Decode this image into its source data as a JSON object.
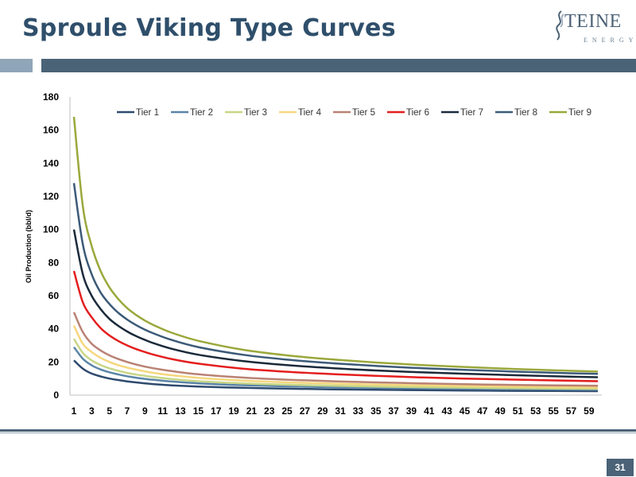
{
  "header": {
    "title": "Sproule Viking Type Curves",
    "logo_text": "TEINE",
    "logo_subtext": "ENERGY"
  },
  "footer": {
    "page_number": "31"
  },
  "colors": {
    "title": "#2f4f6b",
    "band_dark": "#4a6377",
    "band_light": "#8fa6b8"
  },
  "chart_data": {
    "type": "line",
    "title": "",
    "xlabel": "",
    "ylabel": "Oil Production (bbl/d)",
    "ylim": [
      0,
      180
    ],
    "yticks": [
      0,
      20,
      40,
      60,
      80,
      100,
      120,
      140,
      160,
      180
    ],
    "xlim": [
      1,
      60
    ],
    "xticks": [
      1,
      3,
      5,
      7,
      9,
      11,
      13,
      15,
      17,
      19,
      21,
      23,
      25,
      27,
      29,
      31,
      33,
      35,
      37,
      39,
      41,
      43,
      45,
      47,
      49,
      51,
      53,
      55,
      57,
      59
    ],
    "grid": false,
    "legend_position": "top",
    "x": [
      1,
      2,
      3,
      4,
      5,
      6,
      7,
      8,
      9,
      10,
      12,
      15,
      20,
      25,
      30,
      35,
      40,
      45,
      50,
      55,
      60
    ],
    "series": [
      {
        "name": "Tier 1",
        "color": "#2e4a6e",
        "values": [
          21,
          16,
          13,
          11.3,
          10,
          9.1,
          8.3,
          7.7,
          7.1,
          6.6,
          5.9,
          5.2,
          4.4,
          3.9,
          3.5,
          3.2,
          3,
          2.8,
          2.6,
          2.5,
          2.4
        ]
      },
      {
        "name": "Tier 2",
        "color": "#5b85a8",
        "values": [
          29,
          22,
          18,
          15.5,
          13.8,
          12.5,
          11.4,
          10.5,
          9.8,
          9.2,
          8.2,
          7.1,
          6,
          5.3,
          4.8,
          4.4,
          4.1,
          3.8,
          3.6,
          3.4,
          3.2
        ]
      },
      {
        "name": "Tier 3",
        "color": "#c8d686",
        "values": [
          34,
          25.5,
          21,
          18.2,
          16.2,
          14.7,
          13.4,
          12.4,
          11.6,
          10.9,
          9.7,
          8.4,
          7.1,
          6.3,
          5.7,
          5.2,
          4.8,
          4.5,
          4.2,
          4,
          3.8
        ]
      },
      {
        "name": "Tier 4",
        "color": "#f5d77e",
        "values": [
          42,
          31,
          26,
          22.5,
          20,
          18.1,
          16.6,
          15.4,
          14.3,
          13.4,
          12,
          10.4,
          8.8,
          7.7,
          7,
          6.4,
          5.9,
          5.5,
          5.2,
          4.9,
          4.7
        ]
      },
      {
        "name": "Tier 5",
        "color": "#b98274",
        "values": [
          50,
          38,
          31,
          27,
          24,
          21.8,
          20,
          18.5,
          17.2,
          16.2,
          14.5,
          12.6,
          10.6,
          9.3,
          8.4,
          7.7,
          7.1,
          6.6,
          6.2,
          5.9,
          5.6
        ]
      },
      {
        "name": "Tier 6",
        "color": "#e41e1e",
        "values": [
          75,
          56,
          47,
          40.5,
          36,
          32.7,
          30,
          27.8,
          26,
          24.4,
          21.8,
          19,
          16,
          14.1,
          12.7,
          11.6,
          10.7,
          10,
          9.4,
          8.9,
          8.4
        ]
      },
      {
        "name": "Tier 7",
        "color": "#1a2a3a",
        "values": [
          100,
          73,
          60,
          52,
          46,
          41.8,
          38.4,
          35.6,
          33.3,
          31.3,
          28,
          24.4,
          20.6,
          18.1,
          16.3,
          14.9,
          13.8,
          12.9,
          12.1,
          11.4,
          10.8
        ]
      },
      {
        "name": "Tier 8",
        "color": "#3c5a78",
        "values": [
          128,
          91,
          73,
          62,
          55,
          49.7,
          45.6,
          42.3,
          39.5,
          37.2,
          33.3,
          29,
          24.4,
          21.4,
          19.3,
          17.6,
          16.3,
          15.2,
          14.3,
          13.5,
          12.8
        ]
      },
      {
        "name": "Tier 9",
        "color": "#9aa83b",
        "values": [
          168,
          114,
          90,
          75,
          65,
          58,
          52.5,
          48.4,
          45,
          42.2,
          37.7,
          32.8,
          27.4,
          24,
          21.6,
          19.7,
          18.2,
          17,
          15.9,
          15,
          14.2
        ]
      }
    ]
  }
}
